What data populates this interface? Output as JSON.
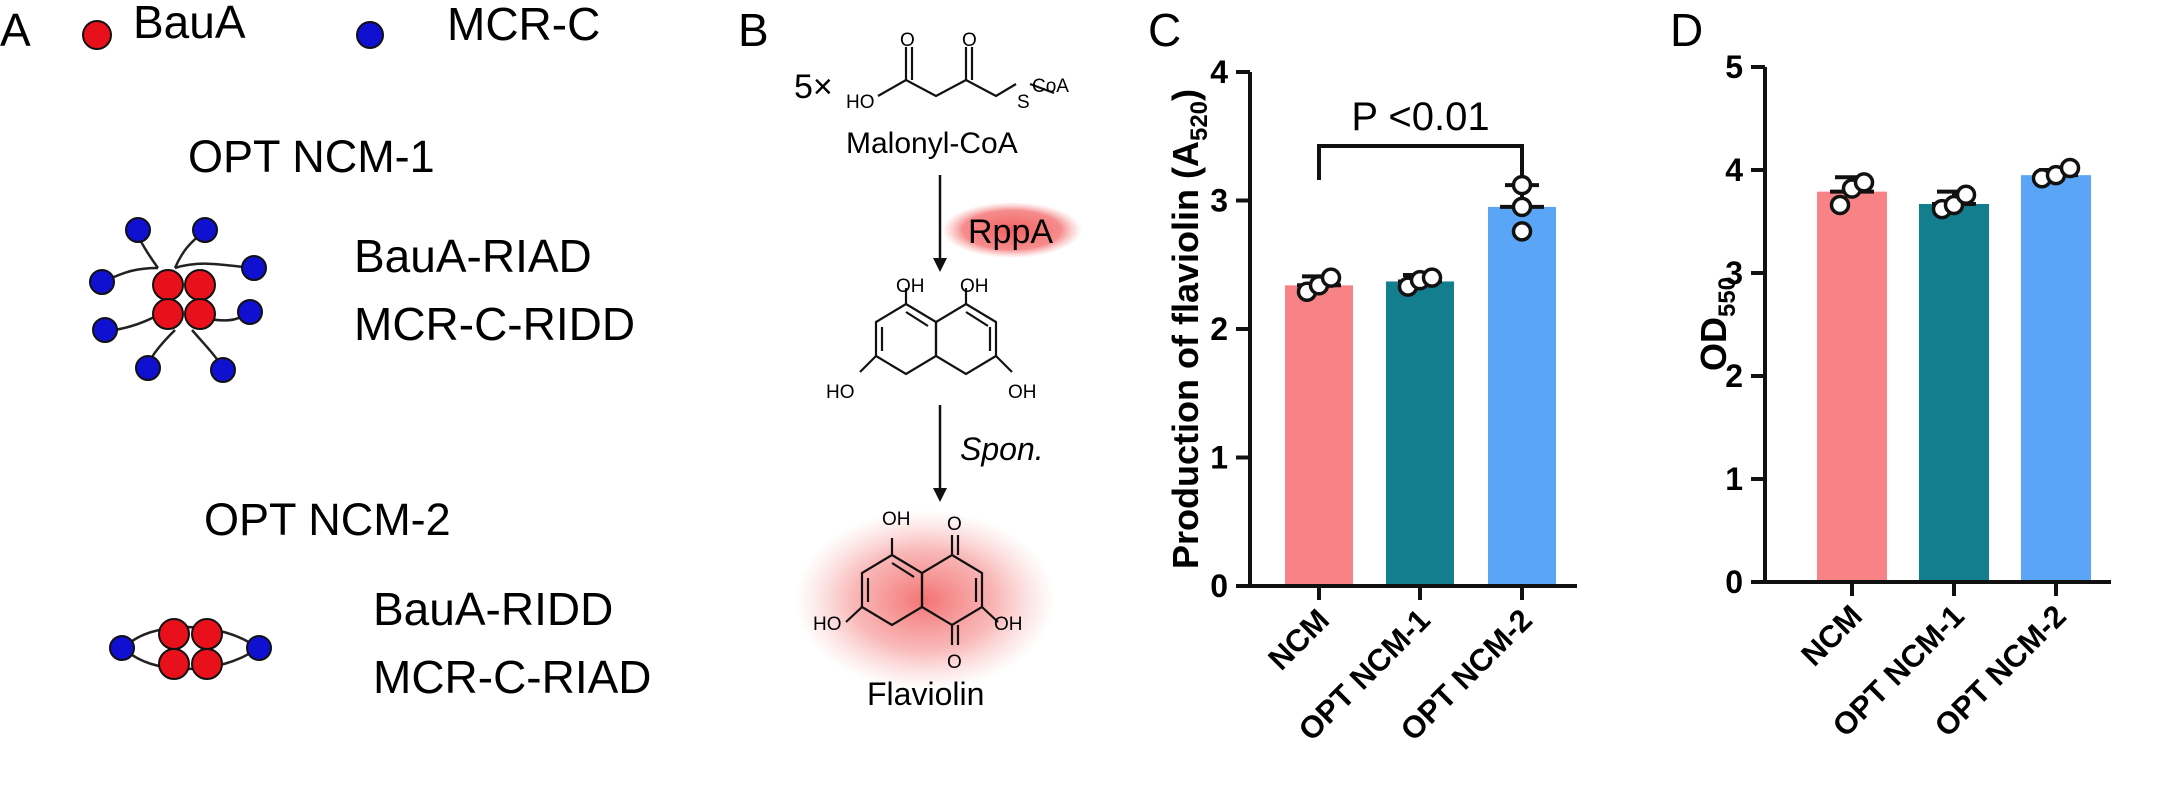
{
  "panels": {
    "A": {
      "letter": "A",
      "legend": [
        {
          "label": "BauA",
          "color": "#e8101a"
        },
        {
          "label": "MCR-C",
          "color": "#1010d0"
        }
      ],
      "assemblies": [
        {
          "title": "OPT NCM-1",
          "line1": "BauA-RIAD",
          "line2": "MCR-C-RIDD"
        },
        {
          "title": "OPT NCM-2",
          "line1": "BauA-RIDD",
          "line2": "MCR-C-RIAD"
        }
      ]
    },
    "B": {
      "letter": "B",
      "multiplier": "5×",
      "substrate": "Malonyl-CoA",
      "enzyme": "RppA",
      "step2": "Spon.",
      "product": "Flaviolin",
      "atoms": {
        "oh": "OH",
        "ho": "HO",
        "o": "O",
        "s": "S",
        "coa": "CoA"
      }
    }
  },
  "chart_data": [
    {
      "panel": "C",
      "type": "bar",
      "categories": [
        "NCM",
        "OPT NCM-1",
        "OPT NCM-2"
      ],
      "values": [
        2.34,
        2.37,
        2.95
      ],
      "points": [
        [
          2.29,
          2.34,
          2.4
        ],
        [
          2.33,
          2.38,
          2.4
        ],
        [
          2.76,
          2.95,
          3.12
        ]
      ],
      "errors": [
        0.07,
        0.05,
        0.17
      ],
      "colors": [
        "#f88386",
        "#127e8e",
        "#5aa5f5"
      ],
      "ylim": [
        0,
        4
      ],
      "yticks": [
        "0",
        "1",
        "2",
        "3",
        "4"
      ],
      "ylabel": "Production of flaviolin  (A",
      "ylabel_sub": "520",
      "ylabel_end": ")",
      "annotation": "P <0.01",
      "bracket": [
        0,
        2
      ]
    },
    {
      "panel": "D",
      "type": "bar",
      "categories": [
        "NCM",
        "OPT NCM-1",
        "OPT NCM-2"
      ],
      "values": [
        3.79,
        3.67,
        3.95
      ],
      "points": [
        [
          3.66,
          3.82,
          3.88
        ],
        [
          3.62,
          3.66,
          3.76
        ],
        [
          3.92,
          3.95,
          4.02
        ]
      ],
      "errors": [
        0.14,
        0.12,
        0.05
      ],
      "colors": [
        "#f88386",
        "#127e8e",
        "#5aa5f5"
      ],
      "ylim": [
        0,
        5
      ],
      "yticks": [
        "0",
        "1",
        "2",
        "3",
        "4",
        "5"
      ],
      "ylabel": "OD",
      "ylabel_sub": "550",
      "ylabel_end": ""
    }
  ]
}
